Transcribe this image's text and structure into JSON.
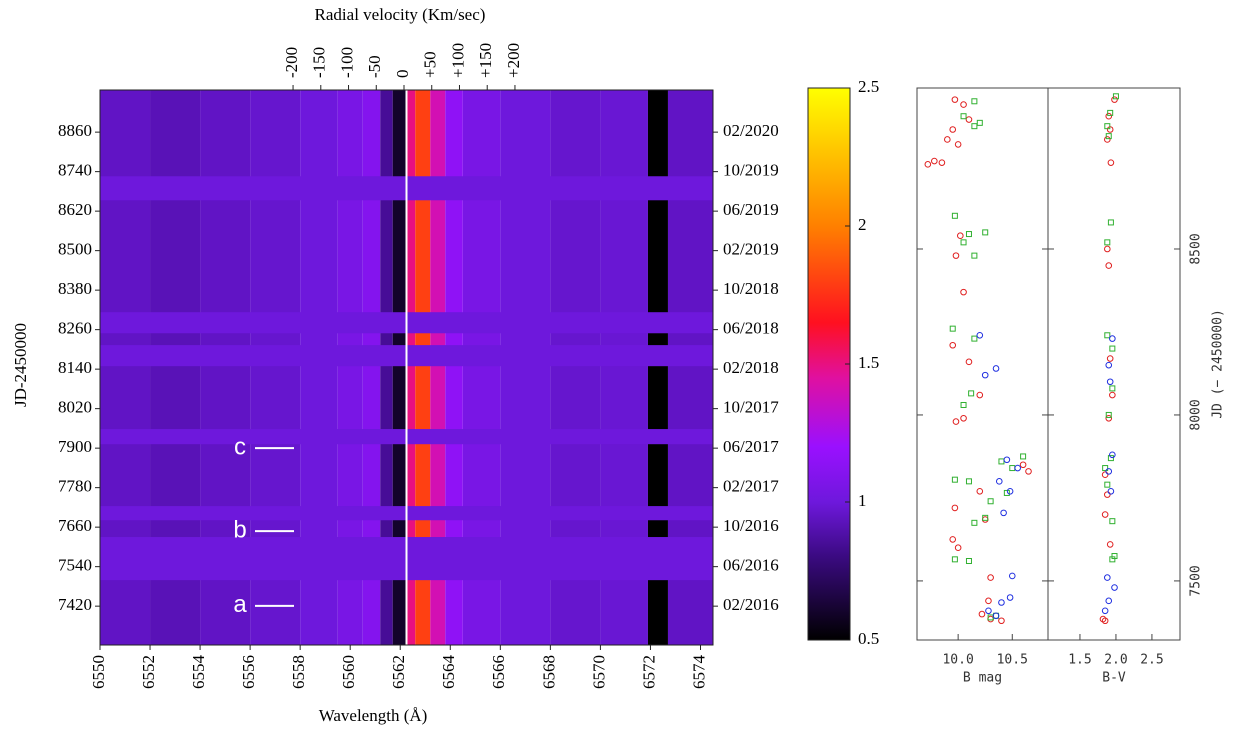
{
  "chart_data": [
    {
      "type": "heatmap",
      "xlabel": "Wavelength (Å)",
      "ylabel": "JD-2450000",
      "x2label": "Radial velocity (Km/sec)",
      "xlim": [
        6550,
        6574.5
      ],
      "xticks": [
        6550,
        6552,
        6554,
        6556,
        6558,
        6560,
        6562,
        6564,
        6566,
        6568,
        6570,
        6572,
        6574
      ],
      "x2lim": [
        -548,
        557
      ],
      "x2ticks": [
        -200,
        -150,
        -100,
        -50,
        0,
        {
          "value": 50,
          "label": "+50"
        },
        {
          "value": 100,
          "label": "+100"
        },
        {
          "value": 150,
          "label": "+150"
        },
        {
          "value": 200,
          "label": "+200"
        }
      ],
      "ylim": [
        7302,
        8988
      ],
      "yticks": [
        7420,
        7540,
        7660,
        7780,
        7900,
        8020,
        8140,
        8260,
        8380,
        8500,
        8620,
        8740,
        8860
      ],
      "y2ticks": [
        {
          "value": 7420,
          "label": "02/2016"
        },
        {
          "value": 7540,
          "label": "06/2016"
        },
        {
          "value": 7660,
          "label": "10/2016"
        },
        {
          "value": 7780,
          "label": "02/2017"
        },
        {
          "value": 7900,
          "label": "06/2017"
        },
        {
          "value": 8020,
          "label": "10/2017"
        },
        {
          "value": 8140,
          "label": "02/2018"
        },
        {
          "value": 8260,
          "label": "06/2018"
        },
        {
          "value": 8380,
          "label": "10/2018"
        },
        {
          "value": 8500,
          "label": "02/2019"
        },
        {
          "value": 8620,
          "label": "06/2019"
        },
        {
          "value": 8740,
          "label": "10/2019"
        },
        {
          "value": 8860,
          "label": "02/2020"
        }
      ],
      "rest_wavelength": 6562.25,
      "profile": {
        "bins": [
          6550,
          6552,
          6554,
          6556,
          6558,
          6559.5,
          6560.5,
          6561.2,
          6561.7,
          6562.25,
          6562.6,
          6563.2,
          6563.8,
          6564.5,
          6566,
          6568,
          6570,
          6571.9,
          6572.7,
          6574.5
        ],
        "values": [
          0.95,
          0.92,
          0.95,
          0.97,
          1.0,
          1.05,
          1.1,
          0.85,
          0.6,
          1.5,
          1.8,
          1.4,
          1.15,
          1.05,
          1.0,
          0.97,
          0.98,
          0.5,
          0.95
        ]
      },
      "gaps": [
        [
          8653,
          8726
        ],
        [
          8249,
          8313
        ],
        [
          8149,
          8213
        ],
        [
          7912,
          7958
        ],
        [
          7681,
          7724
        ],
        [
          7499,
          7630
        ]
      ],
      "gap_value": 1.0,
      "annotations": [
        {
          "text": "a",
          "y": 7421
        },
        {
          "text": "b",
          "y": 7648
        },
        {
          "text": "c",
          "y": 7900
        }
      ],
      "colorbar": {
        "lim": [
          0.5,
          2.5
        ],
        "ticks": [
          0.5,
          1,
          1.5,
          2,
          2.5
        ],
        "colormap": [
          {
            "value": 0.5,
            "color": "#000000"
          },
          {
            "value": 0.8,
            "color": "#3a0a80"
          },
          {
            "value": 1.0,
            "color": "#6e18dc"
          },
          {
            "value": 1.2,
            "color": "#9a10ff"
          },
          {
            "value": 1.45,
            "color": "#e010a0"
          },
          {
            "value": 1.65,
            "color": "#ff1020"
          },
          {
            "value": 2.0,
            "color": "#ff8000"
          },
          {
            "value": 2.5,
            "color": "#ffff00"
          }
        ]
      }
    },
    {
      "type": "scatter",
      "xlabel": "B mag",
      "xlim": [
        9.62,
        10.83
      ],
      "xticks": [
        {
          "value": 10,
          "label": "10.0"
        },
        10.5
      ],
      "ylim": [
        7322,
        8985
      ],
      "yticks": [
        7500,
        8000,
        8500
      ],
      "series": [
        {
          "color": "#e02020",
          "marker": "circle",
          "x": [
            9.97,
            10.05,
            10.1,
            9.95,
            9.9,
            10.0,
            9.78,
            9.72,
            9.85,
            10.02,
            9.98,
            10.05,
            9.95,
            10.1,
            10.2,
            10.05,
            9.98,
            10.65,
            10.6,
            10.2,
            9.97,
            10.25,
            9.95,
            10.0,
            10.3,
            10.28,
            10.22,
            10.3,
            10.4
          ],
          "y": [
            8950,
            8935,
            8890,
            8860,
            8830,
            8815,
            8765,
            8755,
            8760,
            8540,
            8480,
            8370,
            8210,
            8160,
            8060,
            7990,
            7980,
            7830,
            7850,
            7770,
            7720,
            7685,
            7625,
            7600,
            7510,
            7440,
            7400,
            7385,
            7380
          ]
        },
        {
          "color": "#30b030",
          "marker": "square",
          "x": [
            10.15,
            10.05,
            10.15,
            10.2,
            9.97,
            10.05,
            10.1,
            10.25,
            10.15,
            9.95,
            10.15,
            10.05,
            10.12,
            10.4,
            10.5,
            10.6,
            9.97,
            10.1,
            10.3,
            10.45,
            10.15,
            10.25,
            9.97,
            10.1,
            10.35,
            10.3
          ],
          "y": [
            8945,
            8900,
            8870,
            8880,
            8600,
            8520,
            8545,
            8550,
            8480,
            8260,
            8230,
            8030,
            8065,
            7860,
            7840,
            7875,
            7805,
            7800,
            7740,
            7765,
            7675,
            7690,
            7565,
            7560,
            7395,
            7390
          ]
        },
        {
          "color": "#2030e0",
          "marker": "circle",
          "x": [
            10.2,
            10.35,
            10.25,
            10.45,
            10.55,
            10.38,
            10.48,
            10.42,
            10.5,
            10.48,
            10.4,
            10.35,
            10.28
          ],
          "y": [
            8240,
            8140,
            8120,
            7865,
            7840,
            7800,
            7770,
            7705,
            7515,
            7450,
            7435,
            7395,
            7410
          ]
        }
      ]
    },
    {
      "type": "scatter",
      "xlabel": "B-V",
      "ylabel": "JD (− 2450000)",
      "xlim": [
        1.056,
        2.89
      ],
      "xticks": [
        1.5,
        {
          "value": 2,
          "label": "2.0"
        },
        2.5
      ],
      "ylim": [
        7322,
        8985
      ],
      "yticks": [
        7500,
        8000,
        8500
      ],
      "series": [
        {
          "color": "#e02020",
          "marker": "circle",
          "x": [
            1.98,
            1.9,
            1.92,
            1.88,
            1.93,
            1.88,
            1.9,
            1.92,
            1.95,
            1.9,
            1.85,
            1.88,
            1.85,
            1.92,
            1.85,
            1.82
          ],
          "y": [
            8950,
            8900,
            8860,
            8830,
            8760,
            8500,
            8450,
            8170,
            8060,
            7990,
            7820,
            7760,
            7700,
            7610,
            7380,
            7385
          ]
        },
        {
          "color": "#30b030",
          "marker": "square",
          "x": [
            2.0,
            1.92,
            1.88,
            1.9,
            1.93,
            1.88,
            1.95,
            1.88,
            1.95,
            1.9,
            1.93,
            1.85,
            1.88,
            1.95,
            1.98,
            1.95
          ],
          "y": [
            8960,
            8910,
            8870,
            8840,
            8580,
            8520,
            8200,
            8240,
            8080,
            8000,
            7870,
            7840,
            7790,
            7680,
            7575,
            7565
          ]
        },
        {
          "color": "#2030e0",
          "marker": "circle",
          "x": [
            1.95,
            1.9,
            1.92,
            1.95,
            1.9,
            1.93,
            1.88,
            1.98,
            1.9,
            1.85
          ],
          "y": [
            8230,
            8150,
            8100,
            7880,
            7830,
            7770,
            7510,
            7480,
            7440,
            7410
          ]
        }
      ]
    }
  ]
}
